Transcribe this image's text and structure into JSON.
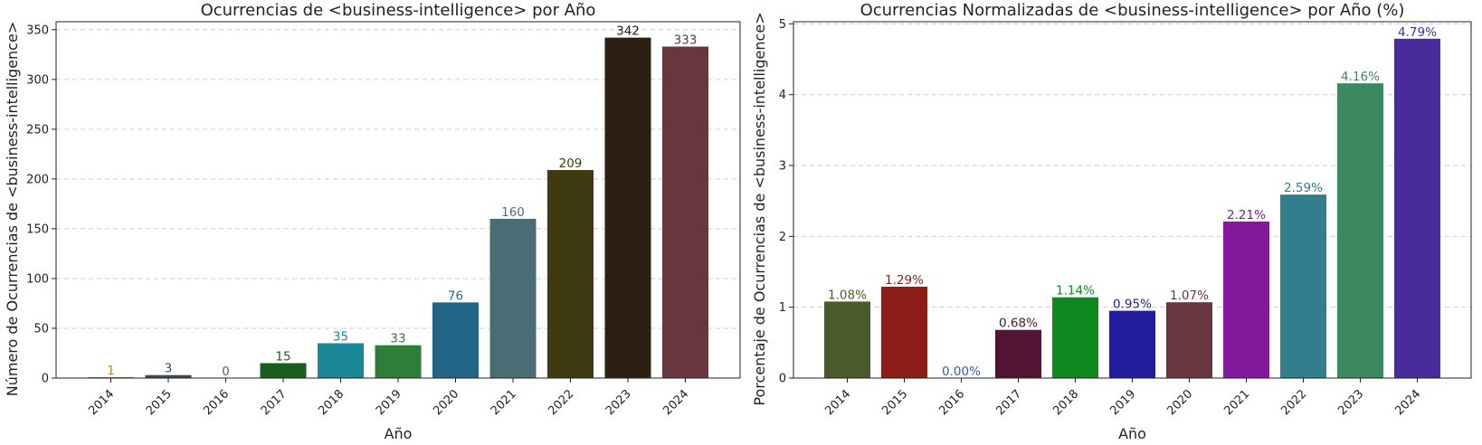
{
  "chart_data": [
    {
      "type": "bar",
      "title": "Ocurrencias de <business-intelligence> por Año",
      "xlabel": "Año",
      "ylabel": "Número de Ocurrencias de <business-intelligence>",
      "categories": [
        "2014",
        "2015",
        "2016",
        "2017",
        "2018",
        "2019",
        "2020",
        "2021",
        "2022",
        "2023",
        "2024"
      ],
      "values": [
        1,
        3,
        0,
        15,
        35,
        33,
        76,
        160,
        209,
        342,
        333
      ],
      "value_labels": [
        "1",
        "3",
        "0",
        "15",
        "35",
        "33",
        "76",
        "160",
        "209",
        "342",
        "333"
      ],
      "ylim": [
        0,
        358
      ],
      "yticks": [
        0,
        50,
        100,
        150,
        200,
        250,
        300,
        350
      ],
      "ytick_labels": [
        "0",
        "50",
        "100",
        "150",
        "200",
        "250",
        "300",
        "350"
      ],
      "grid": "y-dashed",
      "colors": [
        "#b8860b",
        "#3d4a5a",
        "#4a6a3a",
        "#1a5e1f",
        "#1a8896",
        "#2f7d36",
        "#236586",
        "#4a6d75",
        "#403a10",
        "#2c2013",
        "#68363d"
      ]
    },
    {
      "type": "bar",
      "title": "Ocurrencias Normalizadas de <business-intelligence> por Año (%)",
      "xlabel": "Año",
      "ylabel": "Porcentaje de Ocurrencias de <business-intelligence>",
      "categories": [
        "2014",
        "2015",
        "2016",
        "2017",
        "2018",
        "2019",
        "2020",
        "2021",
        "2022",
        "2023",
        "2024"
      ],
      "values": [
        1.08,
        1.29,
        0.0,
        0.68,
        1.14,
        0.95,
        1.07,
        2.21,
        2.59,
        4.16,
        4.79
      ],
      "value_labels": [
        "1.08%",
        "1.29%",
        "0.00%",
        "0.68%",
        "1.14%",
        "0.95%",
        "1.07%",
        "2.21%",
        "2.59%",
        "4.16%",
        "4.79%"
      ],
      "ylim": [
        0,
        5.03
      ],
      "yticks": [
        0,
        1,
        2,
        3,
        4,
        5
      ],
      "ytick_labels": [
        "0",
        "1",
        "2",
        "3",
        "4",
        "5"
      ],
      "grid": "y-dashed",
      "colors": [
        "#4b5a29",
        "#8b1c17",
        "#2e5faa",
        "#521435",
        "#0f8820",
        "#231c9b",
        "#68363f",
        "#82199c",
        "#327e8c",
        "#3c8860",
        "#4a2b9b"
      ]
    }
  ]
}
